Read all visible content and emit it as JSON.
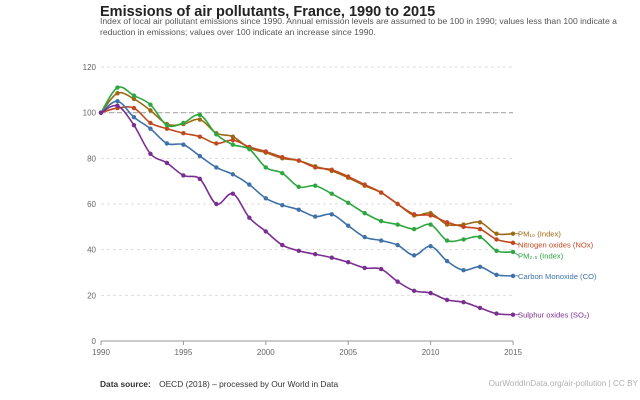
{
  "title": "Emissions of air pollutants, France, 1990 to 2015",
  "subtitle": "Index of local air pollutant emissions since 1990. Annual emission levels are assumed to be 100 in 1990; values less than 100 indicate a reduction in emissions; values over 100 indicate an increase since 1990.",
  "footer": {
    "source_label": "Data source:",
    "source_text": "OECD (2018) – processed by Our World in Data",
    "url": "OurWorldInData.org/air-pollution | CC BY"
  },
  "chart_data": {
    "type": "line",
    "title": "Emissions of air pollutants, France, 1990 to 2015",
    "subtitle": "Index of local air pollutant emissions since 1990. Annual emission levels are assumed to be 100 in 1990; values less than 100 indicate a reduction in emissions; values over 100 indicate an increase since 1990.",
    "x": [
      1990,
      1991,
      1992,
      1993,
      1994,
      1995,
      1996,
      1997,
      1998,
      1999,
      2000,
      2001,
      2002,
      2003,
      2004,
      2005,
      2006,
      2007,
      2008,
      2009,
      2010,
      2011,
      2012,
      2013,
      2014,
      2015
    ],
    "xlim": [
      1990,
      2015
    ],
    "ylim": [
      0,
      120
    ],
    "xticks": [
      1990,
      1995,
      2000,
      2005,
      2010,
      2015
    ],
    "yticks": [
      0,
      20,
      40,
      60,
      80,
      100,
      120
    ],
    "reference_line": 100,
    "grid": "horizontal dashed",
    "legend_placement": "right, labels at line ends",
    "series": [
      {
        "name": "PM₁₀ (Index)",
        "color": "#9C6A12",
        "values": [
          100,
          108.5,
          106,
          101,
          95,
          95,
          97,
          91,
          89.5,
          84.5,
          82.5,
          80,
          79,
          76.5,
          74.5,
          71.5,
          68,
          65,
          60,
          55,
          56,
          51,
          51,
          52,
          47,
          47
        ]
      },
      {
        "name": "Nitrogen oxides (NOx)",
        "color": "#C0471E",
        "values": [
          100,
          102,
          102,
          95.5,
          93,
          91,
          89.5,
          86.5,
          88,
          85,
          83,
          80.5,
          79,
          76,
          75,
          72,
          68.5,
          65,
          60,
          55.5,
          55,
          52,
          50,
          49,
          44.5,
          43
        ]
      },
      {
        "name": "PM₂.₅ (Index)",
        "color": "#2EA640",
        "values": [
          100,
          111,
          107.5,
          103.5,
          94.5,
          95.5,
          99,
          90.5,
          86,
          84,
          76,
          73.5,
          67.5,
          68,
          64.5,
          60.5,
          56,
          52.5,
          51,
          49,
          51,
          44,
          44.5,
          45.5,
          39.5,
          39
        ]
      },
      {
        "name": "Carbon Monoxide (CO)",
        "color": "#3E71A9",
        "values": [
          100,
          105,
          98,
          93,
          86.5,
          86,
          81,
          76,
          73,
          68.5,
          62.5,
          59.5,
          57.5,
          54.5,
          55.5,
          50.5,
          45.5,
          44,
          42,
          37.5,
          41.5,
          35,
          31,
          32.5,
          29,
          28.5
        ]
      },
      {
        "name": "Sulphur oxides (SO₂)",
        "color": "#7A2E91",
        "values": [
          100,
          103,
          94.5,
          82,
          78,
          72.5,
          71,
          60,
          64.5,
          54,
          48,
          42,
          39.5,
          38,
          36.5,
          34.5,
          32,
          31.5,
          26,
          22,
          21,
          18,
          17,
          14.5,
          12,
          11.5
        ]
      }
    ],
    "end_labels": [
      {
        "text": "PM₁₀ (Index)",
        "series": 0
      },
      {
        "text": "Nitrogen oxides (NOx)",
        "series": 1
      },
      {
        "text": "PM₂.₅ (Index)",
        "series": 2
      },
      {
        "text": "Carbon Monoxide (CO)",
        "series": 3
      },
      {
        "text": "Sulphur oxides (SO₂)",
        "series": 4
      }
    ]
  }
}
